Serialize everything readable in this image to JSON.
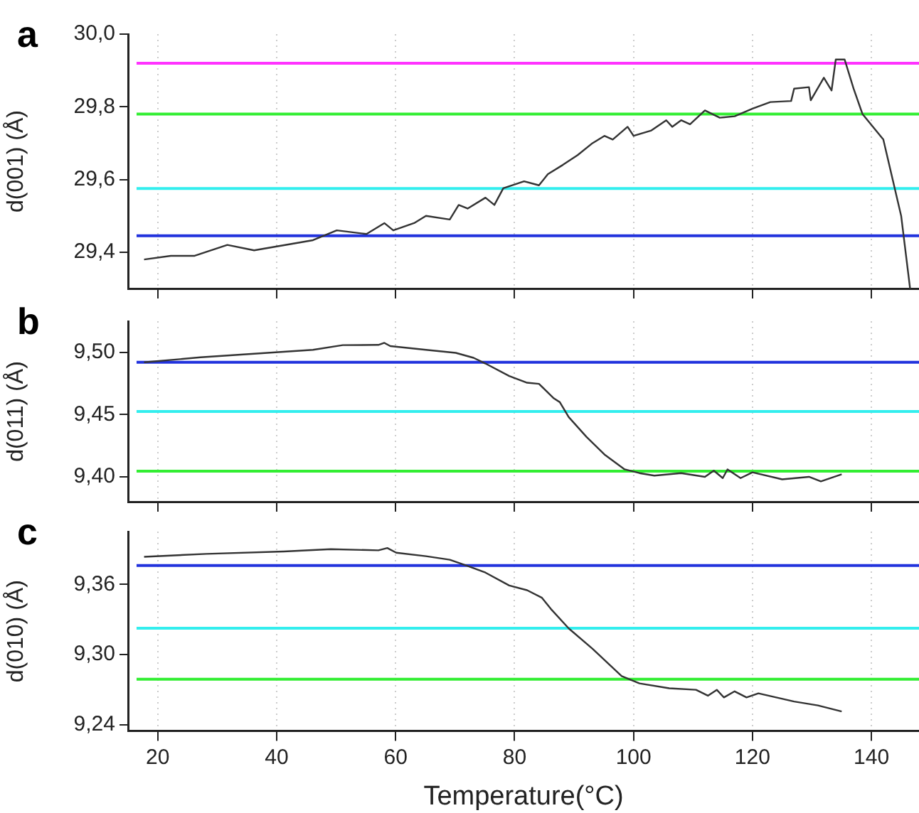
{
  "chart_data": [
    {
      "type": "line",
      "title": "a",
      "ylabel": "d(001) (Å)",
      "xlim": [
        15,
        148
      ],
      "xticks": [
        20,
        40,
        60,
        80,
        100,
        120,
        140
      ],
      "ylim": [
        29.3,
        30.0
      ],
      "yticks": [
        {
          "value": 29.4,
          "label": "29,4"
        },
        {
          "value": 29.6,
          "label": "29,6"
        },
        {
          "value": 29.8,
          "label": "29,8"
        },
        {
          "value": 30.0,
          "label": "30,0"
        }
      ],
      "grid": "x",
      "tick_labels": "y",
      "legend": false,
      "marker": "none",
      "series": [
        {
          "color": "#333333",
          "x": [
            17.7,
            22.2,
            26.2,
            31.7,
            36.2,
            46.1,
            50.1,
            55.1,
            58.1,
            59.6,
            63.1,
            65.1,
            69.1,
            70.6,
            72.1,
            75.1,
            76.6,
            78.1,
            81.6,
            84.1,
            85.6,
            88.1,
            90.6,
            93.1,
            95.1,
            96.5,
            99.0,
            100.0,
            103.0,
            105.5,
            106.5,
            108.0,
            109.5,
            112.0,
            114.5,
            117.0,
            120.0,
            123.0,
            126.5,
            127.0,
            129.5,
            129.8,
            132.0,
            133.3,
            134.0,
            135.5,
            137.0,
            138.5,
            142.0,
            145.0,
            146.5
          ],
          "values": [
            29.38,
            29.39,
            29.39,
            29.42,
            29.405,
            29.433,
            29.46,
            29.45,
            29.48,
            29.46,
            29.48,
            29.5,
            29.49,
            29.53,
            29.52,
            29.55,
            29.53,
            29.576,
            29.595,
            29.584,
            29.615,
            29.64,
            29.667,
            29.7,
            29.72,
            29.71,
            29.745,
            29.72,
            29.735,
            29.763,
            29.745,
            29.763,
            29.752,
            29.79,
            29.77,
            29.774,
            29.795,
            29.813,
            29.816,
            29.85,
            29.854,
            29.818,
            29.88,
            29.845,
            29.93,
            29.93,
            29.85,
            29.78,
            29.71,
            29.5,
            29.3
          ]
        }
      ],
      "ref_lines": [
        {
          "axis": "y",
          "value": 29.92,
          "color": "#ff33ff"
        },
        {
          "axis": "y",
          "value": 29.78,
          "color": "#33ee33"
        },
        {
          "axis": "y",
          "value": 29.575,
          "color": "#33eeee"
        },
        {
          "axis": "y",
          "value": 29.445,
          "color": "#2233dd"
        }
      ]
    },
    {
      "type": "line",
      "title": "b",
      "ylabel": "d(011) (Å)",
      "xlim": [
        15,
        148
      ],
      "xticks": [
        20,
        40,
        60,
        80,
        100,
        120,
        140
      ],
      "ylim": [
        9.38,
        9.525
      ],
      "yticks": [
        {
          "value": 9.4,
          "label": "9,40"
        },
        {
          "value": 9.45,
          "label": "9,45"
        },
        {
          "value": 9.5,
          "label": "9,50"
        }
      ],
      "grid": "x",
      "tick_labels": "y",
      "legend": false,
      "marker": "none",
      "series": [
        {
          "color": "#333333",
          "x": [
            17.7,
            27.2,
            46.1,
            51.1,
            57.1,
            58.1,
            59.1,
            65.1,
            70.1,
            73.1,
            75.1,
            79.1,
            82.1,
            84.1,
            86.6,
            87.6,
            89.1,
            92.1,
            95.1,
            98.5,
            101.0,
            103.5,
            108.0,
            112.0,
            113.5,
            115.0,
            115.8,
            118.0,
            120.0,
            125.0,
            129.5,
            131.5,
            135.0
          ],
          "values": [
            9.492,
            9.496,
            9.502,
            9.5058,
            9.506,
            9.5076,
            9.505,
            9.502,
            9.4996,
            9.4956,
            9.491,
            9.481,
            9.4756,
            9.4747,
            9.463,
            9.46,
            9.448,
            9.432,
            9.418,
            9.406,
            9.403,
            9.401,
            9.403,
            9.4,
            9.405,
            9.399,
            9.406,
            9.399,
            9.4036,
            9.398,
            9.4,
            9.3964,
            9.402
          ]
        }
      ],
      "ref_lines": [
        {
          "axis": "y",
          "value": 9.492,
          "color": "#2233dd"
        },
        {
          "axis": "y",
          "value": 9.4525,
          "color": "#33eeee"
        },
        {
          "axis": "y",
          "value": 9.4045,
          "color": "#33ee33"
        }
      ]
    },
    {
      "type": "line",
      "title": "c",
      "xlabel": "Temperature(°C)",
      "ylabel": "d(010) (Å)",
      "xlim": [
        15,
        148
      ],
      "xticks": [
        20,
        40,
        60,
        80,
        100,
        120,
        140
      ],
      "ylim": [
        9.235,
        9.405
      ],
      "yticks": [
        {
          "value": 9.24,
          "label": "9,24"
        },
        {
          "value": 9.3,
          "label": "9,30"
        },
        {
          "value": 9.36,
          "label": "9,36"
        }
      ],
      "grid": "x",
      "legend": false,
      "marker": "none",
      "series": [
        {
          "color": "#333333",
          "x": [
            17.7,
            28.2,
            41.2,
            49.1,
            57.1,
            58.6,
            60.1,
            65.1,
            69.1,
            72.1,
            75.1,
            79.1,
            82.1,
            84.6,
            86.1,
            89.1,
            93.1,
            98.0,
            101.0,
            106.0,
            110.5,
            112.5,
            114.0,
            115.2,
            117.0,
            119.0,
            121.0,
            127.0,
            131.0,
            135.0
          ],
          "values": [
            9.3835,
            9.386,
            9.388,
            9.39,
            9.389,
            9.391,
            9.387,
            9.384,
            9.381,
            9.3757,
            9.37,
            9.359,
            9.355,
            9.3485,
            9.339,
            9.3224,
            9.305,
            9.2817,
            9.2755,
            9.2713,
            9.27,
            9.265,
            9.27,
            9.2635,
            9.2687,
            9.2635,
            9.267,
            9.26,
            9.2567,
            9.2515
          ]
        }
      ],
      "ref_lines": [
        {
          "axis": "y",
          "value": 9.376,
          "color": "#2233dd"
        },
        {
          "axis": "y",
          "value": 9.3225,
          "color": "#33eeee"
        },
        {
          "axis": "y",
          "value": 9.279,
          "color": "#33ee33"
        }
      ]
    }
  ]
}
